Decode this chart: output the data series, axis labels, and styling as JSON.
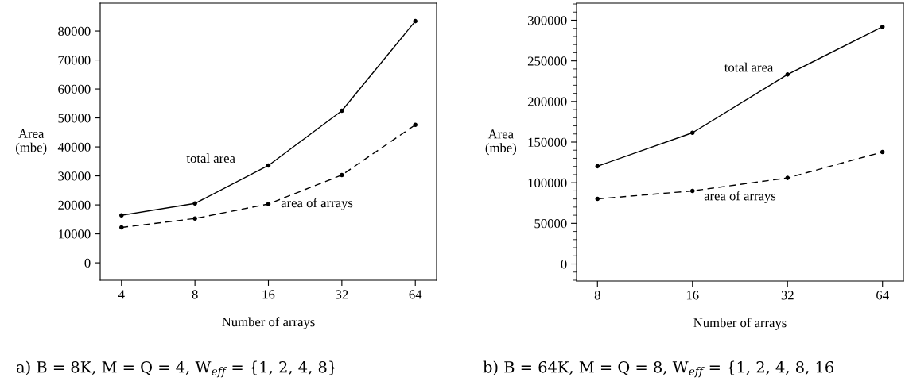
{
  "chart_data": [
    {
      "type": "line",
      "xlabel": "Number of arrays",
      "ylabel": "Area\n(mbe)",
      "categories": [
        "4",
        "8",
        "16",
        "32",
        "64"
      ],
      "marker": "circle",
      "grid": false,
      "legend": false,
      "ylim": [
        -6000,
        89600
      ],
      "yticks": [
        0,
        10000,
        20000,
        30000,
        40000,
        50000,
        60000,
        70000,
        80000
      ],
      "series": [
        {
          "name": "total area",
          "color": "#000000",
          "line_style": "solid",
          "values": [
            16400,
            20500,
            33600,
            52500,
            83400
          ]
        },
        {
          "name": "area of arrays",
          "color": "#000000",
          "line_style": "dashed",
          "values": [
            12200,
            15300,
            20300,
            30300,
            47600
          ]
        }
      ],
      "annotations": [
        "a) B = 8K, M = Q = 4, W$_{eff}$ = {1, 2, 4, 8}"
      ]
    },
    {
      "type": "line",
      "xlabel": "Number of arrays",
      "ylabel": "Area\n(mbe)",
      "categories": [
        "8",
        "16",
        "32",
        "64"
      ],
      "marker": "circle",
      "grid": false,
      "legend": false,
      "ylim": [
        -21000,
        321000
      ],
      "yticks": [
        0,
        50000,
        100000,
        150000,
        200000,
        250000,
        300000
      ],
      "series": [
        {
          "name": "total area",
          "color": "#000000",
          "line_style": "solid",
          "values": [
            120300,
            161500,
            233200,
            292000
          ]
        },
        {
          "name": "area of arrays",
          "color": "#000000",
          "line_style": "dashed",
          "values": [
            80100,
            89900,
            105900,
            137800
          ]
        }
      ],
      "annotations": [
        "b) B = 64K, M = Q = 8, W$_{eff}$ = {1, 2, 4, 8, 16"
      ]
    }
  ]
}
